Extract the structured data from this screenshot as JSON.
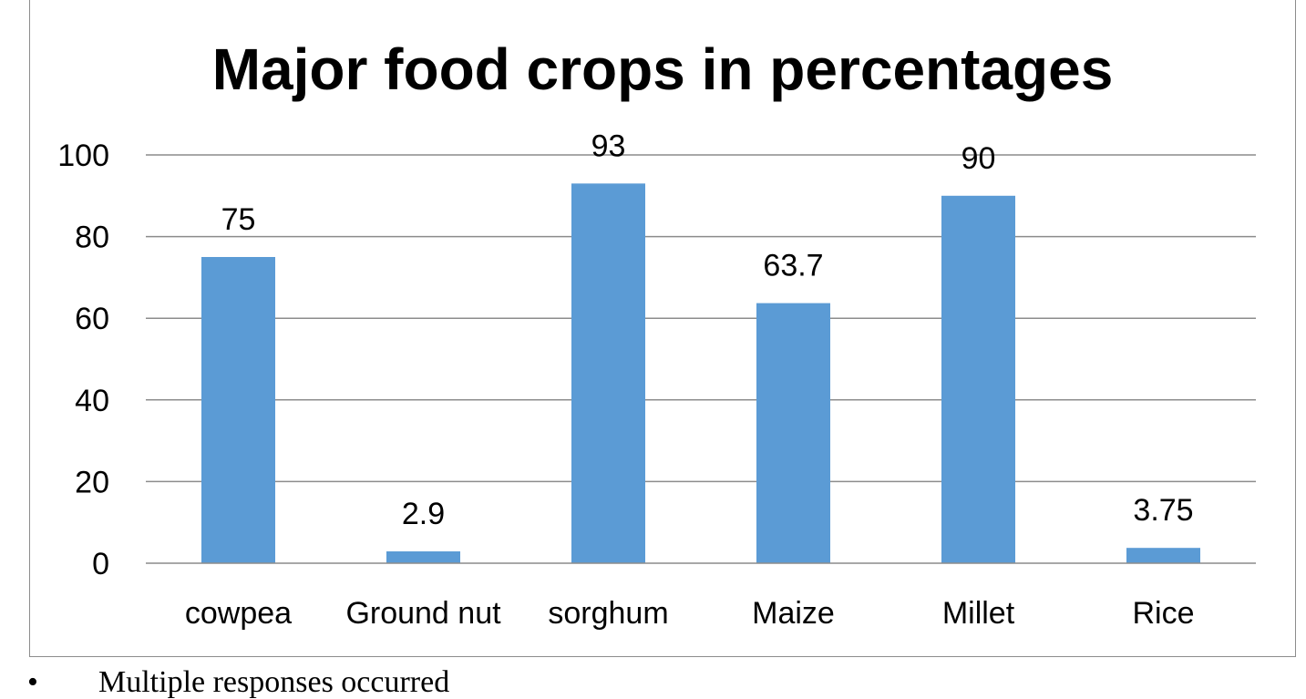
{
  "chart_data": {
    "type": "bar",
    "title": "Major food crops in percentages",
    "categories": [
      "cowpea",
      "Ground nut",
      "sorghum",
      "Maize",
      "Millet",
      "Rice"
    ],
    "values": [
      75,
      2.9,
      93,
      63.7,
      90,
      3.75
    ],
    "data_labels": [
      "75",
      "2.9",
      "93",
      "63.7",
      "90",
      "3.75"
    ],
    "xlabel": "",
    "ylabel": "",
    "ylim": [
      0,
      100
    ],
    "yticks": [
      0,
      20,
      40,
      60,
      80,
      100
    ],
    "grid": true,
    "legend": "none",
    "colors": {
      "bar": "#5b9bd5",
      "grid": "#8c8c8c",
      "text": "#000000"
    }
  },
  "footnote": {
    "bullet": "•",
    "text": "Multiple responses occurred"
  }
}
